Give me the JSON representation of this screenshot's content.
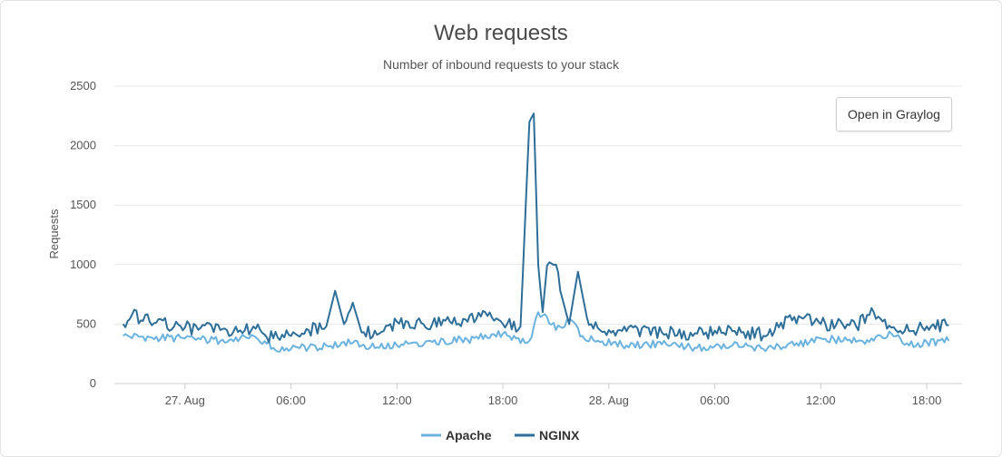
{
  "chart_data": {
    "type": "line",
    "title": "Web requests",
    "subtitle": "Number of inbound requests to your stack",
    "ylabel": "Requests",
    "xlabel": "",
    "ylim": [
      0,
      2500
    ],
    "y_ticks": [
      0,
      500,
      1000,
      1500,
      2000,
      2500
    ],
    "x_range": [
      "2023-08-26T20:00",
      "2023-08-28T20:00"
    ],
    "x_tick_values": [
      "2023-08-27T00:00",
      "2023-08-27T06:00",
      "2023-08-27T12:00",
      "2023-08-27T18:00",
      "2023-08-28T00:00",
      "2023-08-28T06:00",
      "2023-08-28T12:00",
      "2023-08-28T18:00"
    ],
    "x_tick_labels": [
      "27. Aug",
      "06:00",
      "12:00",
      "18:00",
      "28. Aug",
      "06:00",
      "12:00",
      "18:00"
    ],
    "grid": "horizontal",
    "legend_position": "bottom-center",
    "colors": {
      "Apache": "#6bb3de",
      "NGINX": "#2e6f99"
    },
    "series": [
      {
        "name": "Apache",
        "x": [
          "2023-08-26T20:30",
          "2023-08-26T22:00",
          "2023-08-27T00:00",
          "2023-08-27T02:00",
          "2023-08-27T04:00",
          "2023-08-27T05:00",
          "2023-08-27T06:00",
          "2023-08-27T07:00",
          "2023-08-27T08:00",
          "2023-08-27T09:00",
          "2023-08-27T10:00",
          "2023-08-27T11:00",
          "2023-08-27T12:00",
          "2023-08-27T14:00",
          "2023-08-27T16:00",
          "2023-08-27T18:00",
          "2023-08-27T19:00",
          "2023-08-27T19:30",
          "2023-08-27T20:00",
          "2023-08-27T20:30",
          "2023-08-27T21:00",
          "2023-08-27T21:45",
          "2023-08-27T22:30",
          "2023-08-27T23:30",
          "2023-08-28T01:00",
          "2023-08-28T03:00",
          "2023-08-28T05:00",
          "2023-08-28T07:00",
          "2023-08-28T09:00",
          "2023-08-28T10:30",
          "2023-08-28T12:00",
          "2023-08-28T14:00",
          "2023-08-28T15:00",
          "2023-08-28T16:00",
          "2023-08-28T17:00",
          "2023-08-28T18:00",
          "2023-08-28T19:15"
        ],
        "values": [
          400,
          390,
          380,
          360,
          390,
          300,
          290,
          300,
          320,
          350,
          320,
          300,
          320,
          350,
          370,
          420,
          340,
          360,
          600,
          560,
          450,
          540,
          400,
          350,
          320,
          330,
          300,
          320,
          300,
          320,
          380,
          350,
          360,
          420,
          320,
          350,
          360
        ]
      },
      {
        "name": "NGINX",
        "x": [
          "2023-08-26T20:30",
          "2023-08-26T21:00",
          "2023-08-26T22:00",
          "2023-08-27T00:00",
          "2023-08-27T02:00",
          "2023-08-27T04:00",
          "2023-08-27T05:00",
          "2023-08-27T06:00",
          "2023-08-27T07:00",
          "2023-08-27T08:00",
          "2023-08-27T08:30",
          "2023-08-27T09:00",
          "2023-08-27T09:30",
          "2023-08-27T10:00",
          "2023-08-27T11:00",
          "2023-08-27T12:00",
          "2023-08-27T14:00",
          "2023-08-27T16:00",
          "2023-08-27T17:00",
          "2023-08-27T18:00",
          "2023-08-27T19:00",
          "2023-08-27T19:30",
          "2023-08-27T19:45",
          "2023-08-27T20:00",
          "2023-08-27T20:15",
          "2023-08-27T20:30",
          "2023-08-27T21:00",
          "2023-08-27T21:15",
          "2023-08-27T21:45",
          "2023-08-27T22:15",
          "2023-08-27T22:45",
          "2023-08-27T23:00",
          "2023-08-27T23:30",
          "2023-08-28T01:00",
          "2023-08-28T03:00",
          "2023-08-28T05:00",
          "2023-08-28T07:00",
          "2023-08-28T09:00",
          "2023-08-28T10:30",
          "2023-08-28T12:00",
          "2023-08-28T14:00",
          "2023-08-28T15:00",
          "2023-08-28T16:00",
          "2023-08-28T17:00",
          "2023-08-28T18:00",
          "2023-08-28T19:15"
        ],
        "values": [
          500,
          580,
          520,
          470,
          450,
          460,
          380,
          400,
          450,
          480,
          780,
          500,
          680,
          430,
          420,
          520,
          500,
          520,
          600,
          500,
          480,
          2200,
          2270,
          1000,
          600,
          990,
          1000,
          780,
          500,
          940,
          560,
          500,
          450,
          440,
          430,
          420,
          440,
          410,
          560,
          500,
          480,
          600,
          470,
          440,
          480,
          490
        ]
      }
    ]
  },
  "button": {
    "open_label": "Open in Graylog"
  }
}
